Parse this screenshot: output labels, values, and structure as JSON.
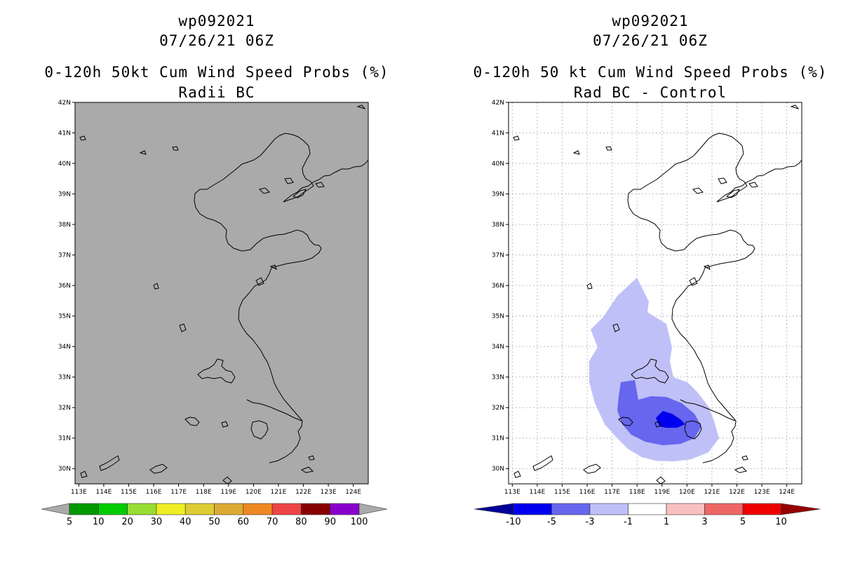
{
  "left": {
    "storm_id": "wp092021",
    "datetime": "07/26/21 06Z",
    "title": "0-120h 50kt Cum Wind Speed Probs (%)",
    "subtitle": "Radii BC",
    "background_color": "#aaaaaa",
    "colorbar": {
      "labels": [
        "5",
        "10",
        "20",
        "30",
        "40",
        "50",
        "60",
        "70",
        "80",
        "90",
        "100"
      ],
      "colors": [
        "#009900",
        "#00cc00",
        "#99dd33",
        "#eeee22",
        "#ddcc33",
        "#ddaa33",
        "#ee8822",
        "#ee4444",
        "#880000",
        "#8800cc"
      ],
      "end_color": "#aaaaaa"
    }
  },
  "right": {
    "storm_id": "wp092021",
    "datetime": "07/26/21 06Z",
    "title": "0-120h 50 kt Cum Wind Speed Probs (%)",
    "subtitle": "Rad BC - Control",
    "colorbar": {
      "labels": [
        "-10",
        "-5",
        "-3",
        "-1",
        "1",
        "3",
        "5",
        "10"
      ],
      "colors": [
        "#0000ee",
        "#6666ee",
        "#c0c0f8",
        "#ffffff",
        "#f8c0c0",
        "#ee6666",
        "#ee0000"
      ],
      "low_end_color": "#000099",
      "high_end_color": "#990000"
    }
  },
  "map": {
    "lat_labels": [
      "42N",
      "41N",
      "40N",
      "39N",
      "38N",
      "37N",
      "36N",
      "35N",
      "34N",
      "33N",
      "32N",
      "31N",
      "30N"
    ],
    "lon_labels": [
      "113E",
      "114E",
      "115E",
      "116E",
      "117E",
      "118E",
      "119E",
      "120E",
      "121E",
      "122E",
      "123E",
      "124E"
    ]
  }
}
